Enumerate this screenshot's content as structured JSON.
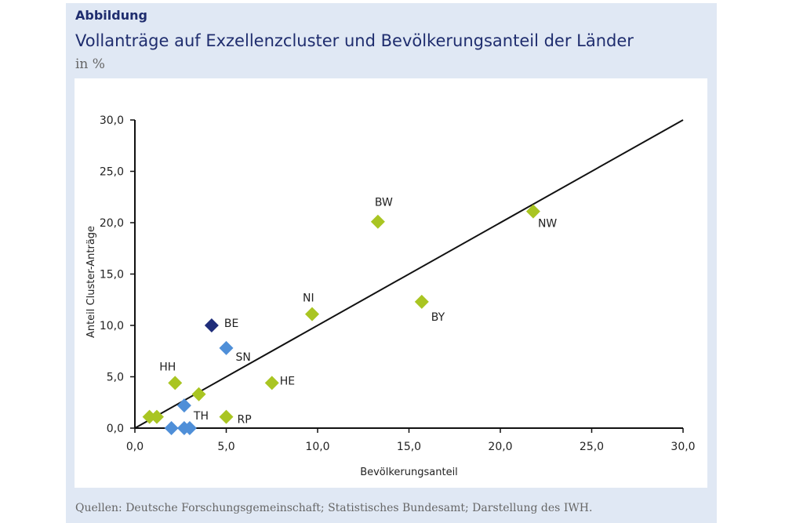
{
  "header": {
    "label": "Abbildung",
    "title": "Vollanträge auf Exzellenzcluster und Bevölkerungsanteil der Länder",
    "unit": "in %"
  },
  "source": "Quellen: Deutsche Forschungsgemeinschaft; Statistisches Bundesamt; Darstellung des IWH.",
  "chart_data": {
    "type": "scatter",
    "title": "Vollanträge auf Exzellenzcluster und Bevölkerungsanteil der Länder",
    "xlabel": "Bevölkerungsanteil",
    "ylabel": "Anteil Cluster-Anträge",
    "xlim": [
      0,
      30
    ],
    "ylim": [
      0,
      30
    ],
    "xticks": [
      "0,0",
      "5,0",
      "10,0",
      "15,0",
      "20,0",
      "25,0",
      "30,0"
    ],
    "yticks": [
      "0,0",
      "5,0",
      "10,0",
      "15,0",
      "20,0",
      "25,0",
      "30,0"
    ],
    "grid": false,
    "reference_line": {
      "from": [
        0,
        0
      ],
      "to": [
        30,
        30
      ]
    },
    "colors": {
      "west": "#a9c522",
      "east": "#4f8fd8",
      "berlin": "#1f2d7a"
    },
    "points": [
      {
        "label": "NW",
        "x": 21.8,
        "y": 21.1,
        "group": "west"
      },
      {
        "label": "BW",
        "x": 13.3,
        "y": 20.1,
        "group": "west"
      },
      {
        "label": "BY",
        "x": 15.7,
        "y": 12.3,
        "group": "west"
      },
      {
        "label": "NI",
        "x": 9.7,
        "y": 11.1,
        "group": "west"
      },
      {
        "label": "BE",
        "x": 4.2,
        "y": 10.0,
        "group": "berlin"
      },
      {
        "label": "SN",
        "x": 5.0,
        "y": 7.8,
        "group": "east"
      },
      {
        "label": "HH",
        "x": 2.2,
        "y": 4.4,
        "group": "west"
      },
      {
        "label": "HE",
        "x": 7.5,
        "y": 4.4,
        "group": "west"
      },
      {
        "label": "",
        "x": 3.5,
        "y": 3.3,
        "group": "west"
      },
      {
        "label": "RP",
        "x": 5.0,
        "y": 1.1,
        "group": "west"
      },
      {
        "label": "",
        "x": 0.8,
        "y": 1.1,
        "group": "west"
      },
      {
        "label": "",
        "x": 1.2,
        "y": 1.1,
        "group": "west"
      },
      {
        "label": "TH",
        "x": 2.7,
        "y": 2.2,
        "group": "east"
      },
      {
        "label": "",
        "x": 2.0,
        "y": 0.0,
        "group": "east"
      },
      {
        "label": "",
        "x": 2.7,
        "y": 0.0,
        "group": "east"
      },
      {
        "label": "",
        "x": 3.0,
        "y": 0.0,
        "group": "east"
      }
    ]
  }
}
